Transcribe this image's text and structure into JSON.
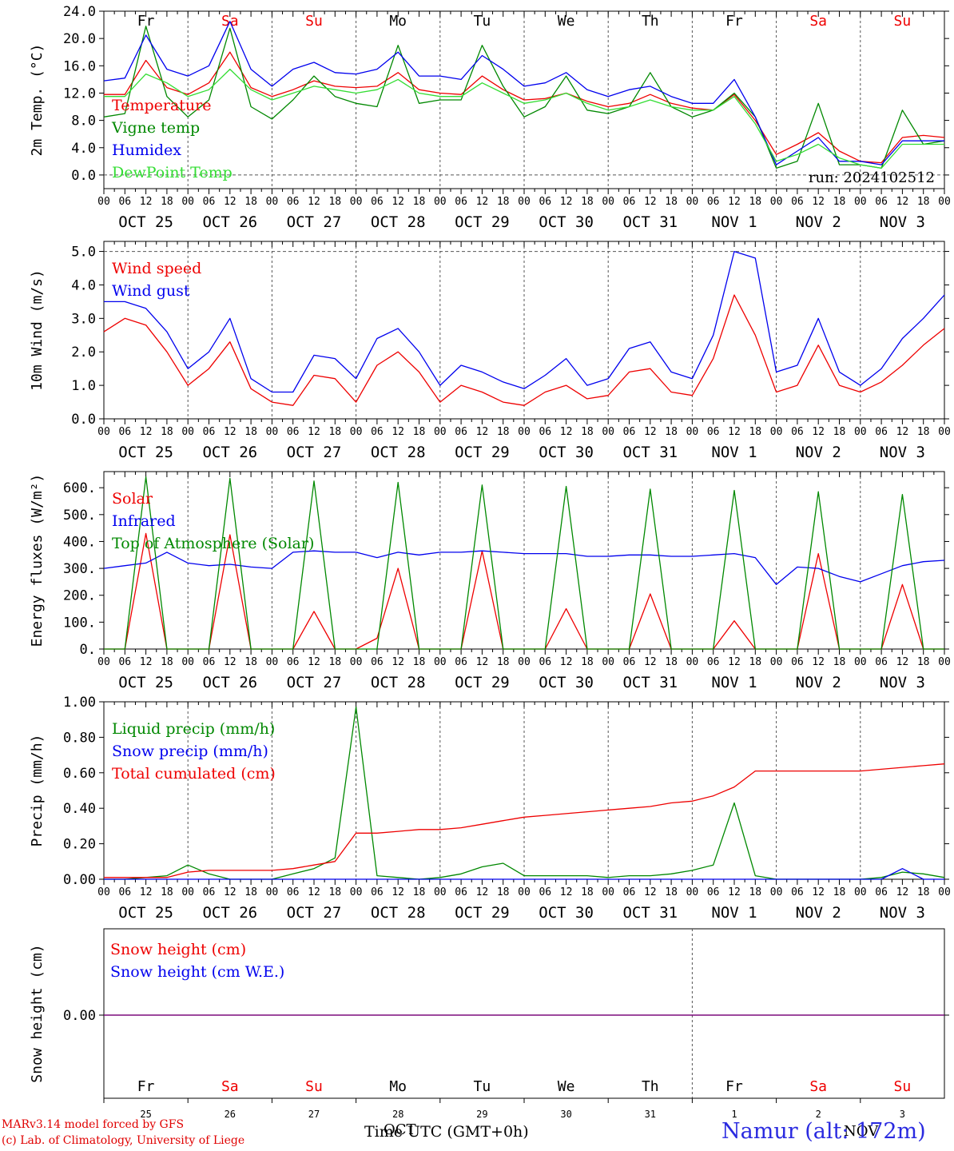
{
  "colors": {
    "red": "#ee0000",
    "blue": "#0000ee",
    "green": "#008800",
    "lightgreen": "#33dd33",
    "purple": "#770077",
    "weekend": "#ee0000",
    "weekday": "#000000"
  },
  "days": [
    {
      "abbr": "Fr",
      "date": "OCT 25",
      "num": "25",
      "weekend": false
    },
    {
      "abbr": "Sa",
      "date": "OCT 26",
      "num": "26",
      "weekend": true
    },
    {
      "abbr": "Su",
      "date": "OCT 27",
      "num": "27",
      "weekend": true
    },
    {
      "abbr": "Mo",
      "date": "OCT 28",
      "num": "28",
      "weekend": false
    },
    {
      "abbr": "Tu",
      "date": "OCT 29",
      "num": "29",
      "weekend": false
    },
    {
      "abbr": "We",
      "date": "OCT 30",
      "num": "30",
      "weekend": false
    },
    {
      "abbr": "Th",
      "date": "OCT 31",
      "num": "31",
      "weekend": false
    },
    {
      "abbr": "Fr",
      "date": "NOV  1",
      "num": "1",
      "weekend": false
    },
    {
      "abbr": "Sa",
      "date": "NOV  2",
      "num": "2",
      "weekend": true
    },
    {
      "abbr": "Su",
      "date": "NOV  3",
      "num": "3",
      "weekend": true
    }
  ],
  "hour_ticks": [
    "00",
    "06",
    "12",
    "18"
  ],
  "footer": {
    "credit_line1": "MARv3.14 model forced by GFS",
    "credit_line2": "(c) Lab. of Climatology, University of Liege",
    "station": "Namur (alt: 172m)",
    "xaxis_title": "Time UTC (GMT+0h)",
    "month_oct": "OCT",
    "month_nov": "NOV"
  },
  "chart_data": [
    {
      "type": "line",
      "ylabel": "2m Temp. (°C)",
      "ylim": [
        -2,
        24
      ],
      "yticks": [
        "0.0",
        "4.0",
        "8.0",
        "12.0",
        "16.0",
        "20.0",
        "24.0"
      ],
      "show_day_names": true,
      "run_label": "run: 2024102512",
      "reference_line": 0,
      "x_hours": [
        0,
        6,
        12,
        18,
        24,
        30,
        36,
        42,
        48,
        54,
        60,
        66,
        72,
        78,
        84,
        90,
        96,
        102,
        108,
        114,
        120,
        126,
        132,
        138,
        144,
        150,
        156,
        162,
        168,
        174,
        180,
        186,
        192,
        198,
        204,
        210,
        216,
        222,
        228,
        234,
        240
      ],
      "series": [
        {
          "name": "Temperature",
          "color": "red",
          "values": [
            11.8,
            11.8,
            16.8,
            12.8,
            11.8,
            13.5,
            18.0,
            12.8,
            11.5,
            12.5,
            13.8,
            13.0,
            12.8,
            13.0,
            15.0,
            12.5,
            12.0,
            11.8,
            14.5,
            12.5,
            11.0,
            11.2,
            12.0,
            10.8,
            10.0,
            10.5,
            11.8,
            10.5,
            9.8,
            9.5,
            11.8,
            8.0,
            3.0,
            4.5,
            6.2,
            3.5,
            2.0,
            1.8,
            5.5,
            5.8,
            5.5
          ]
        },
        {
          "name": "Vigne temp",
          "color": "green",
          "values": [
            8.5,
            9.0,
            21.8,
            11.5,
            8.5,
            11.0,
            21.5,
            10.0,
            8.2,
            11.0,
            14.5,
            11.5,
            10.5,
            10.0,
            19.0,
            10.5,
            11.0,
            11.0,
            19.0,
            13.0,
            8.5,
            10.0,
            14.5,
            9.5,
            9.0,
            10.0,
            15.0,
            10.0,
            8.5,
            9.5,
            12.0,
            8.5,
            1.0,
            2.0,
            10.5,
            1.5,
            1.5,
            1.0,
            9.5,
            4.5,
            5.0
          ]
        },
        {
          "name": "Humidex",
          "color": "blue",
          "values": [
            13.8,
            14.2,
            20.5,
            15.5,
            14.5,
            16.0,
            22.5,
            15.5,
            13.0,
            15.5,
            16.5,
            15.0,
            14.8,
            15.5,
            18.0,
            14.5,
            14.5,
            14.0,
            17.5,
            15.5,
            13.0,
            13.5,
            15.0,
            12.5,
            11.5,
            12.5,
            13.0,
            11.5,
            10.5,
            10.5,
            14.0,
            8.5,
            1.5,
            3.5,
            5.5,
            2.0,
            2.0,
            1.5,
            5.0,
            5.0,
            5.0
          ]
        },
        {
          "name": "DewPoint Temp",
          "color": "lightgreen",
          "values": [
            11.5,
            11.5,
            14.8,
            13.5,
            11.5,
            12.5,
            15.5,
            12.5,
            11.0,
            12.0,
            13.0,
            12.5,
            12.0,
            12.5,
            14.0,
            12.0,
            11.5,
            11.5,
            13.5,
            12.0,
            10.5,
            11.0,
            12.0,
            10.5,
            9.5,
            10.0,
            11.0,
            10.0,
            9.5,
            9.5,
            11.5,
            7.5,
            2.0,
            3.0,
            4.5,
            2.5,
            1.5,
            1.0,
            4.5,
            4.5,
            4.5
          ]
        }
      ]
    },
    {
      "type": "line",
      "ylabel": "10m Wind (m/s)",
      "ylim": [
        0,
        5.3
      ],
      "yticks": [
        "0.0",
        "1.0",
        "2.0",
        "3.0",
        "4.0",
        "5.0"
      ],
      "reference_line": 5,
      "x_hours": [
        0,
        6,
        12,
        18,
        24,
        30,
        36,
        42,
        48,
        54,
        60,
        66,
        72,
        78,
        84,
        90,
        96,
        102,
        108,
        114,
        120,
        126,
        132,
        138,
        144,
        150,
        156,
        162,
        168,
        174,
        180,
        186,
        192,
        198,
        204,
        210,
        216,
        222,
        228,
        234,
        240
      ],
      "series": [
        {
          "name": "Wind speed",
          "color": "red",
          "values": [
            2.6,
            3.0,
            2.8,
            2.0,
            1.0,
            1.5,
            2.3,
            0.9,
            0.5,
            0.4,
            1.3,
            1.2,
            0.5,
            1.6,
            2.0,
            1.4,
            0.5,
            1.0,
            0.8,
            0.5,
            0.4,
            0.8,
            1.0,
            0.6,
            0.7,
            1.4,
            1.5,
            0.8,
            0.7,
            1.8,
            3.7,
            2.5,
            0.8,
            1.0,
            2.2,
            1.0,
            0.8,
            1.1,
            1.6,
            2.2,
            2.7
          ]
        },
        {
          "name": "Wind gust",
          "color": "blue",
          "values": [
            3.5,
            3.5,
            3.3,
            2.6,
            1.5,
            2.0,
            3.0,
            1.2,
            0.8,
            0.8,
            1.9,
            1.8,
            1.2,
            2.4,
            2.7,
            2.0,
            1.0,
            1.6,
            1.4,
            1.1,
            0.9,
            1.3,
            1.8,
            1.0,
            1.2,
            2.1,
            2.3,
            1.4,
            1.2,
            2.5,
            5.0,
            4.8,
            1.4,
            1.6,
            3.0,
            1.4,
            1.0,
            1.5,
            2.4,
            3.0,
            3.7
          ]
        }
      ]
    },
    {
      "type": "line",
      "ylabel": "Energy fluxes (W/m²)",
      "ylim": [
        0,
        660
      ],
      "yticks": [
        "0.",
        "100.",
        "200.",
        "300.",
        "400.",
        "500.",
        "600."
      ],
      "x_hours": [
        0,
        6,
        12,
        18,
        24,
        30,
        36,
        42,
        48,
        54,
        60,
        66,
        72,
        78,
        84,
        90,
        96,
        102,
        108,
        114,
        120,
        126,
        132,
        138,
        144,
        150,
        156,
        162,
        168,
        174,
        180,
        186,
        192,
        198,
        204,
        210,
        216,
        222,
        228,
        234,
        240
      ],
      "series": [
        {
          "name": "Solar",
          "color": "red",
          "values": [
            0,
            0,
            430,
            0,
            0,
            0,
            425,
            0,
            0,
            0,
            140,
            0,
            0,
            40,
            300,
            0,
            0,
            0,
            365,
            0,
            0,
            0,
            150,
            0,
            0,
            0,
            205,
            0,
            0,
            0,
            105,
            0,
            0,
            0,
            355,
            0,
            0,
            0,
            240,
            0,
            0
          ]
        },
        {
          "name": "Infrared",
          "color": "blue",
          "values": [
            300,
            310,
            320,
            360,
            320,
            310,
            315,
            305,
            300,
            360,
            365,
            360,
            360,
            340,
            360,
            350,
            360,
            360,
            365,
            360,
            355,
            355,
            355,
            345,
            345,
            350,
            350,
            345,
            345,
            350,
            355,
            340,
            240,
            305,
            300,
            270,
            250,
            280,
            310,
            325,
            330
          ]
        },
        {
          "name": "Top of Atmosphere (Solar)",
          "color": "green",
          "values": [
            0,
            0,
            640,
            0,
            0,
            0,
            635,
            0,
            0,
            0,
            625,
            0,
            0,
            0,
            620,
            0,
            0,
            0,
            610,
            0,
            0,
            0,
            605,
            0,
            0,
            0,
            595,
            0,
            0,
            0,
            590,
            0,
            0,
            0,
            585,
            0,
            0,
            0,
            575,
            0,
            0
          ]
        }
      ]
    },
    {
      "type": "line",
      "ylabel": "Precip (mm/h)",
      "ylim": [
        0,
        1.0
      ],
      "yticks": [
        "0.00",
        "0.20",
        "0.40",
        "0.60",
        "0.80",
        "1.00"
      ],
      "x_hours": [
        0,
        6,
        12,
        18,
        24,
        30,
        36,
        42,
        48,
        54,
        60,
        66,
        72,
        78,
        84,
        90,
        96,
        102,
        108,
        114,
        120,
        126,
        132,
        138,
        144,
        150,
        156,
        162,
        168,
        174,
        180,
        186,
        192,
        198,
        204,
        210,
        216,
        222,
        228,
        234,
        240
      ],
      "series": [
        {
          "name": "Liquid precip (mm/h)",
          "color": "green",
          "values": [
            0.0,
            0.0,
            0.01,
            0.02,
            0.08,
            0.03,
            0.0,
            0.0,
            0.0,
            0.03,
            0.06,
            0.12,
            0.97,
            0.02,
            0.01,
            0.0,
            0.01,
            0.03,
            0.07,
            0.09,
            0.02,
            0.02,
            0.02,
            0.02,
            0.01,
            0.02,
            0.02,
            0.03,
            0.05,
            0.08,
            0.43,
            0.02,
            0.0,
            0.0,
            0.0,
            0.0,
            0.0,
            0.01,
            0.04,
            0.03,
            0.01
          ]
        },
        {
          "name": "Snow precip (mm/h)",
          "color": "blue",
          "values": [
            0,
            0,
            0,
            0,
            0,
            0,
            0,
            0,
            0,
            0,
            0,
            0,
            0,
            0,
            0,
            0,
            0,
            0,
            0,
            0,
            0,
            0,
            0,
            0,
            0,
            0,
            0,
            0,
            0,
            0,
            0,
            0,
            0,
            0,
            0,
            0,
            0,
            0,
            0.06,
            0,
            0
          ]
        },
        {
          "name": "Total cumulated (cm)",
          "color": "red",
          "values": [
            0.01,
            0.01,
            0.01,
            0.01,
            0.04,
            0.05,
            0.05,
            0.05,
            0.05,
            0.06,
            0.08,
            0.1,
            0.26,
            0.26,
            0.27,
            0.28,
            0.28,
            0.29,
            0.31,
            0.33,
            0.35,
            0.36,
            0.37,
            0.38,
            0.39,
            0.4,
            0.41,
            0.43,
            0.44,
            0.47,
            0.52,
            0.61,
            0.61,
            0.61,
            0.61,
            0.61,
            0.61,
            0.62,
            0.63,
            0.64,
            0.65
          ]
        }
      ]
    },
    {
      "type": "line",
      "ylabel": "Snow height (cm)",
      "yticks": [
        "0.00"
      ],
      "series": [
        {
          "name": "Snow height (cm)",
          "color": "red",
          "values": [
            0,
            0
          ]
        },
        {
          "name": "Snow height (cm W.E.)",
          "color": "blue",
          "values": [
            0,
            0
          ]
        }
      ]
    }
  ]
}
